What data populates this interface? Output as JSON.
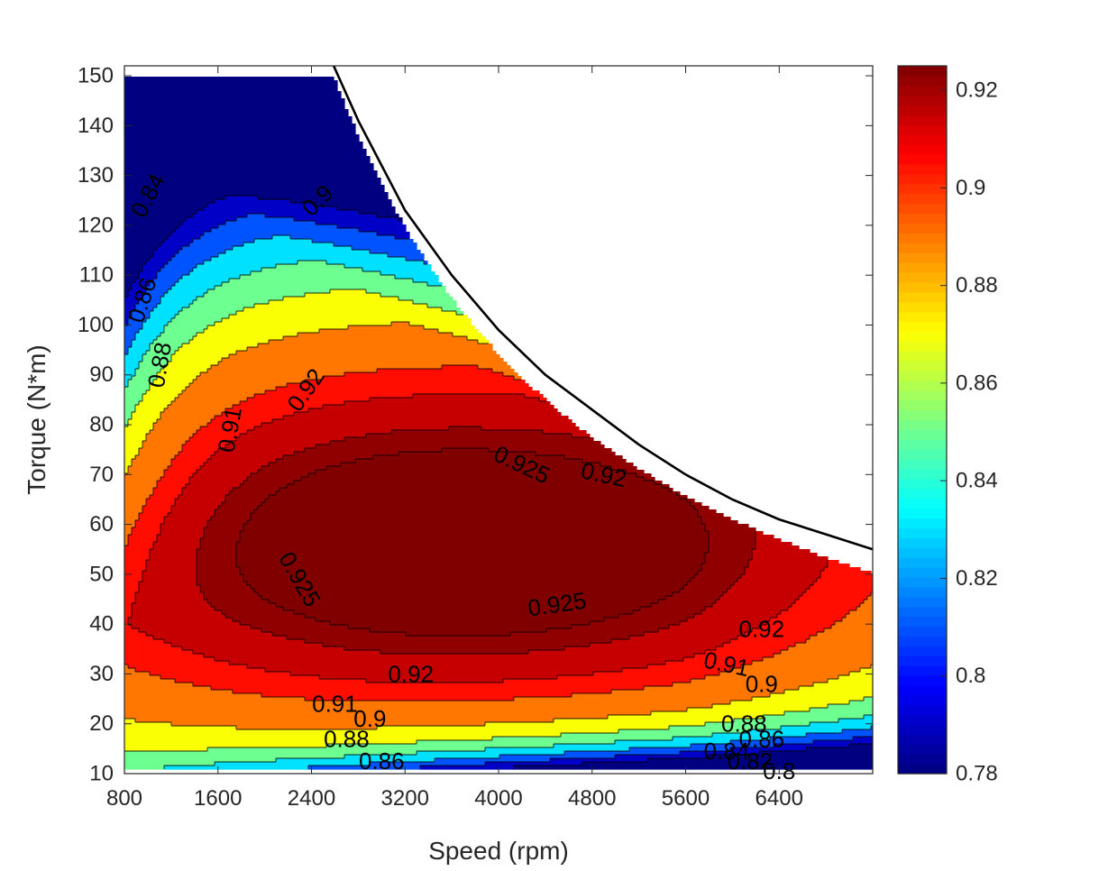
{
  "chart_data": {
    "type": "heatmap",
    "subtype": "filled-contour",
    "title": "",
    "xlabel": "Speed (rpm)",
    "ylabel": "Torque (N*m)",
    "xlim": [
      800,
      7200
    ],
    "ylim": [
      10,
      152
    ],
    "xticks": [
      "800",
      "1600",
      "2400",
      "3200",
      "4000",
      "4800",
      "5600",
      "6400"
    ],
    "yticks": [
      "10",
      "20",
      "30",
      "40",
      "50",
      "60",
      "70",
      "80",
      "90",
      "100",
      "110",
      "120",
      "130",
      "140",
      "150"
    ],
    "colorbar": {
      "colormap": "jet",
      "range": [
        0.78,
        0.925
      ],
      "ticks": [
        "0.78",
        "0.8",
        "0.82",
        "0.84",
        "0.86",
        "0.88",
        "0.9",
        "0.92"
      ]
    },
    "contour_levels": [
      0.78,
      0.8,
      0.82,
      0.84,
      0.86,
      0.88,
      0.9,
      0.91,
      0.92,
      0.925
    ],
    "max_torque_curve": {
      "description": "constant torque 150 to about 2600 rpm, then constant power boundary",
      "points": [
        [
          2590,
          152
        ],
        [
          2800,
          141
        ],
        [
          3200,
          123
        ],
        [
          3600,
          110
        ],
        [
          4000,
          99
        ],
        [
          4400,
          90
        ],
        [
          4800,
          83
        ],
        [
          5200,
          76
        ],
        [
          5600,
          70
        ],
        [
          6000,
          65
        ],
        [
          6400,
          61
        ],
        [
          6800,
          58
        ],
        [
          7200,
          55
        ]
      ]
    },
    "contour_labels": [
      {
        "text": "0.84",
        "x": 1000,
        "y": 126,
        "angle": -62
      },
      {
        "text": "0.86",
        "x": 950,
        "y": 105,
        "angle": -72
      },
      {
        "text": "0.88",
        "x": 1100,
        "y": 92,
        "angle": -80
      },
      {
        "text": "0.9",
        "x": 2450,
        "y": 125,
        "angle": -45
      },
      {
        "text": "0.91",
        "x": 1700,
        "y": 79,
        "angle": -80
      },
      {
        "text": "0.92",
        "x": 2350,
        "y": 87,
        "angle": -55
      },
      {
        "text": "0.925",
        "x": 4200,
        "y": 72,
        "angle": 25
      },
      {
        "text": "0.92",
        "x": 4900,
        "y": 70,
        "angle": 12
      },
      {
        "text": "0.925",
        "x": 2300,
        "y": 49,
        "angle": 60
      },
      {
        "text": "0.925",
        "x": 4500,
        "y": 44,
        "angle": -8
      },
      {
        "text": "0.92",
        "x": 6250,
        "y": 39,
        "angle": 0
      },
      {
        "text": "0.92",
        "x": 3250,
        "y": 30,
        "angle": 0
      },
      {
        "text": "0.91",
        "x": 5950,
        "y": 32,
        "angle": 12
      },
      {
        "text": "0.9",
        "x": 6250,
        "y": 28,
        "angle": 0
      },
      {
        "text": "0.91",
        "x": 2600,
        "y": 24,
        "angle": 0
      },
      {
        "text": "0.9",
        "x": 2900,
        "y": 21,
        "angle": 0
      },
      {
        "text": "0.88",
        "x": 2700,
        "y": 17,
        "angle": 0
      },
      {
        "text": "0.86",
        "x": 3000,
        "y": 12.5,
        "angle": 0
      },
      {
        "text": "0.88",
        "x": 6100,
        "y": 20,
        "angle": 0
      },
      {
        "text": "0.86",
        "x": 6250,
        "y": 17,
        "angle": 0
      },
      {
        "text": "0.84",
        "x": 5950,
        "y": 14.5,
        "angle": 0
      },
      {
        "text": "0.82",
        "x": 6150,
        "y": 12.5,
        "angle": 0
      },
      {
        "text": "0.8",
        "x": 6400,
        "y": 10.5,
        "angle": 0
      }
    ]
  }
}
